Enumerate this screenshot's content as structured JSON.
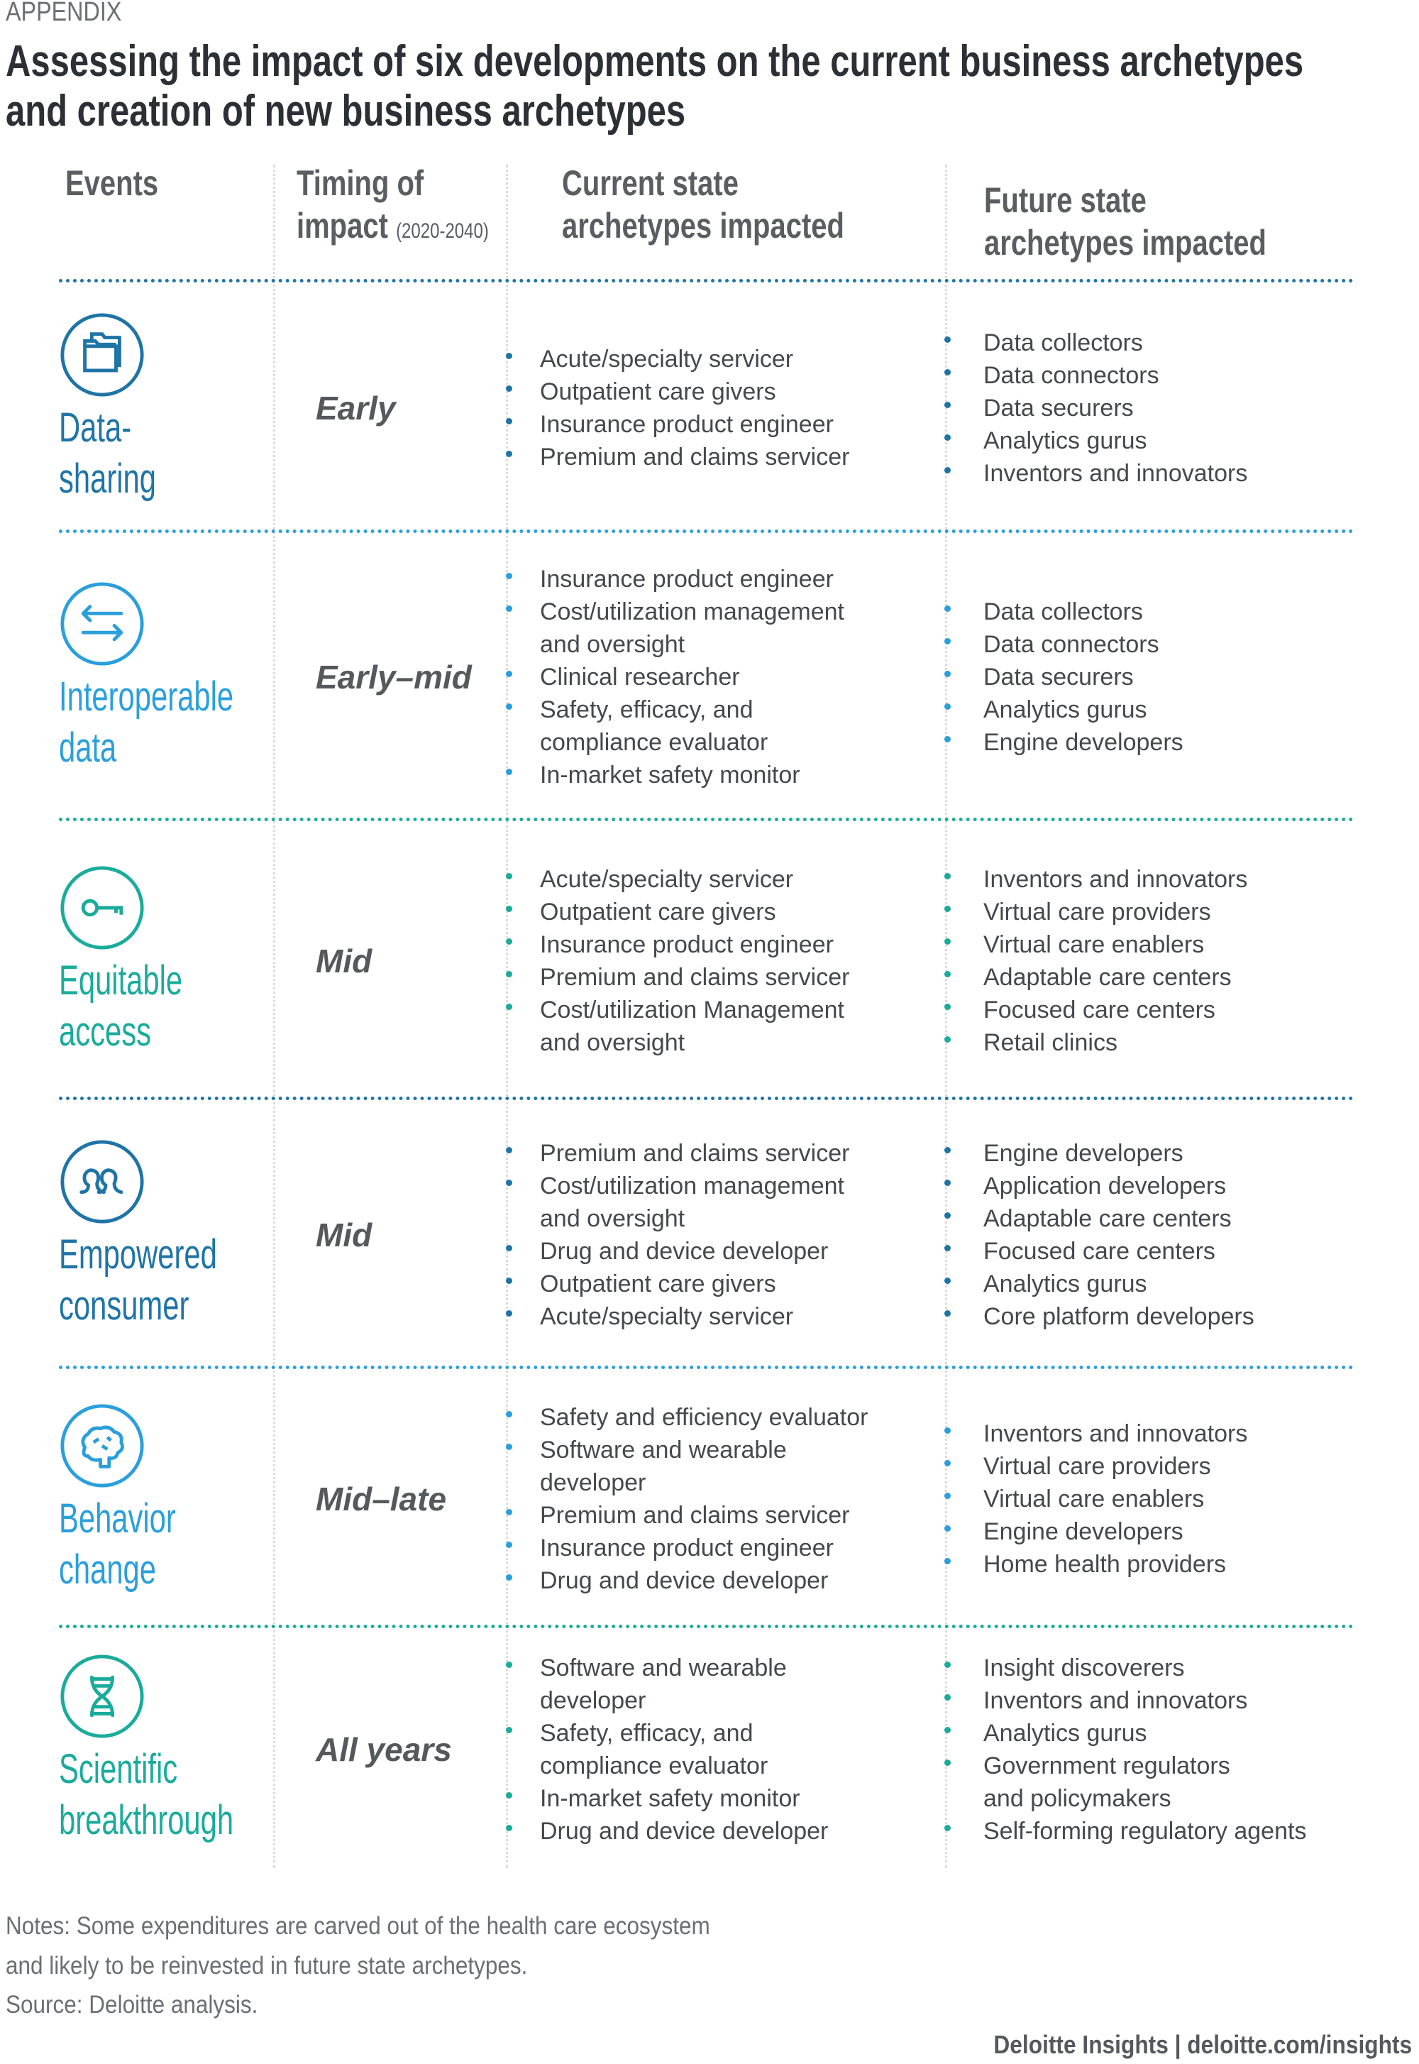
{
  "appendix_label": "APPENDIX",
  "title_line1": "Assessing the impact of six developments on the current business archetypes",
  "title_line2": "and creation of new business archetypes",
  "headers": {
    "events": "Events",
    "timing_line1": "Timing of",
    "timing_line2": "impact",
    "timing_range": "(2020-2040)",
    "current_line1": "Current state",
    "current_line2": "archetypes impacted",
    "future_line1": "Future state",
    "future_line2": "archetypes impacted"
  },
  "colors": {
    "dark_blue": "#1f74a6",
    "light_blue": "#2a9fdc",
    "teal": "#1aab9b"
  },
  "rows": [
    {
      "event": "Data-\nsharing",
      "icon": "folders-icon",
      "color": "#1f74a6",
      "timing": "Early",
      "current": [
        "Acute/specialty servicer",
        "Outpatient care givers",
        "Insurance product engineer",
        "Premium and claims servicer"
      ],
      "future": [
        "Data collectors",
        "Data connectors",
        "Data securers",
        "Analytics gurus",
        "Inventors and innovators"
      ]
    },
    {
      "event": "Interoperable\ndata",
      "icon": "exchange-arrows-icon",
      "color": "#2a9fdc",
      "timing": "Early–mid",
      "current": [
        "Insurance product engineer",
        "Cost/utilization management\nand oversight",
        "Clinical researcher",
        "Safety, efficacy, and\ncompliance evaluator",
        "In-market safety monitor"
      ],
      "future": [
        "Data collectors",
        "Data connectors",
        "Data securers",
        "Analytics gurus",
        "Engine developers"
      ]
    },
    {
      "event": "Equitable\naccess",
      "icon": "key-icon",
      "color": "#1aab9b",
      "timing": "Mid",
      "current": [
        "Acute/specialty servicer",
        "Outpatient care givers",
        "Insurance product engineer",
        "Premium and claims servicer",
        "Cost/utilization Management\nand oversight"
      ],
      "future": [
        "Inventors and innovators",
        "Virtual care providers",
        "Virtual care enablers",
        "Adaptable care centers",
        "Focused care centers",
        "Retail clinics"
      ]
    },
    {
      "event": "Empowered\nconsumer",
      "icon": "people-icon",
      "color": "#1f74a6",
      "timing": "Mid",
      "current": [
        "Premium and claims servicer",
        "Cost/utilization management\nand oversight",
        "Drug and device developer",
        "Outpatient care givers",
        "Acute/specialty servicer"
      ],
      "future": [
        "Engine developers",
        "Application developers",
        "Adaptable care centers",
        "Focused care centers",
        "Analytics gurus",
        "Core platform developers"
      ]
    },
    {
      "event": "Behavior\nchange",
      "icon": "brain-icon",
      "color": "#2a9fdc",
      "timing": "Mid–late",
      "current": [
        "Safety and efficiency evaluator",
        "Software and wearable\ndeveloper",
        "Premium and claims servicer",
        "Insurance product engineer",
        "Drug and device developer"
      ],
      "future": [
        "Inventors and innovators",
        "Virtual care providers",
        "Virtual care enablers",
        "Engine developers",
        "Home health providers"
      ]
    },
    {
      "event": "Scientific\nbreakthrough",
      "icon": "dna-icon",
      "color": "#1aab9b",
      "timing": "All years",
      "current": [
        "Software and wearable\ndeveloper",
        "Safety, efficacy, and\ncompliance evaluator",
        "In-market safety monitor",
        "Drug and device developer"
      ],
      "future": [
        "Insight discoverers",
        "Inventors and innovators",
        "Analytics gurus",
        "Government regulators\nand policymakers",
        "Self-forming regulatory agents"
      ]
    }
  ],
  "notes_line1": "Notes: Some expenditures are carved out of the health care ecosystem",
  "notes_line2": "and likely to be reinvested in future state archetypes.",
  "source": "Source: Deloitte analysis.",
  "credit": "Deloitte Insights | deloitte.com/insights"
}
